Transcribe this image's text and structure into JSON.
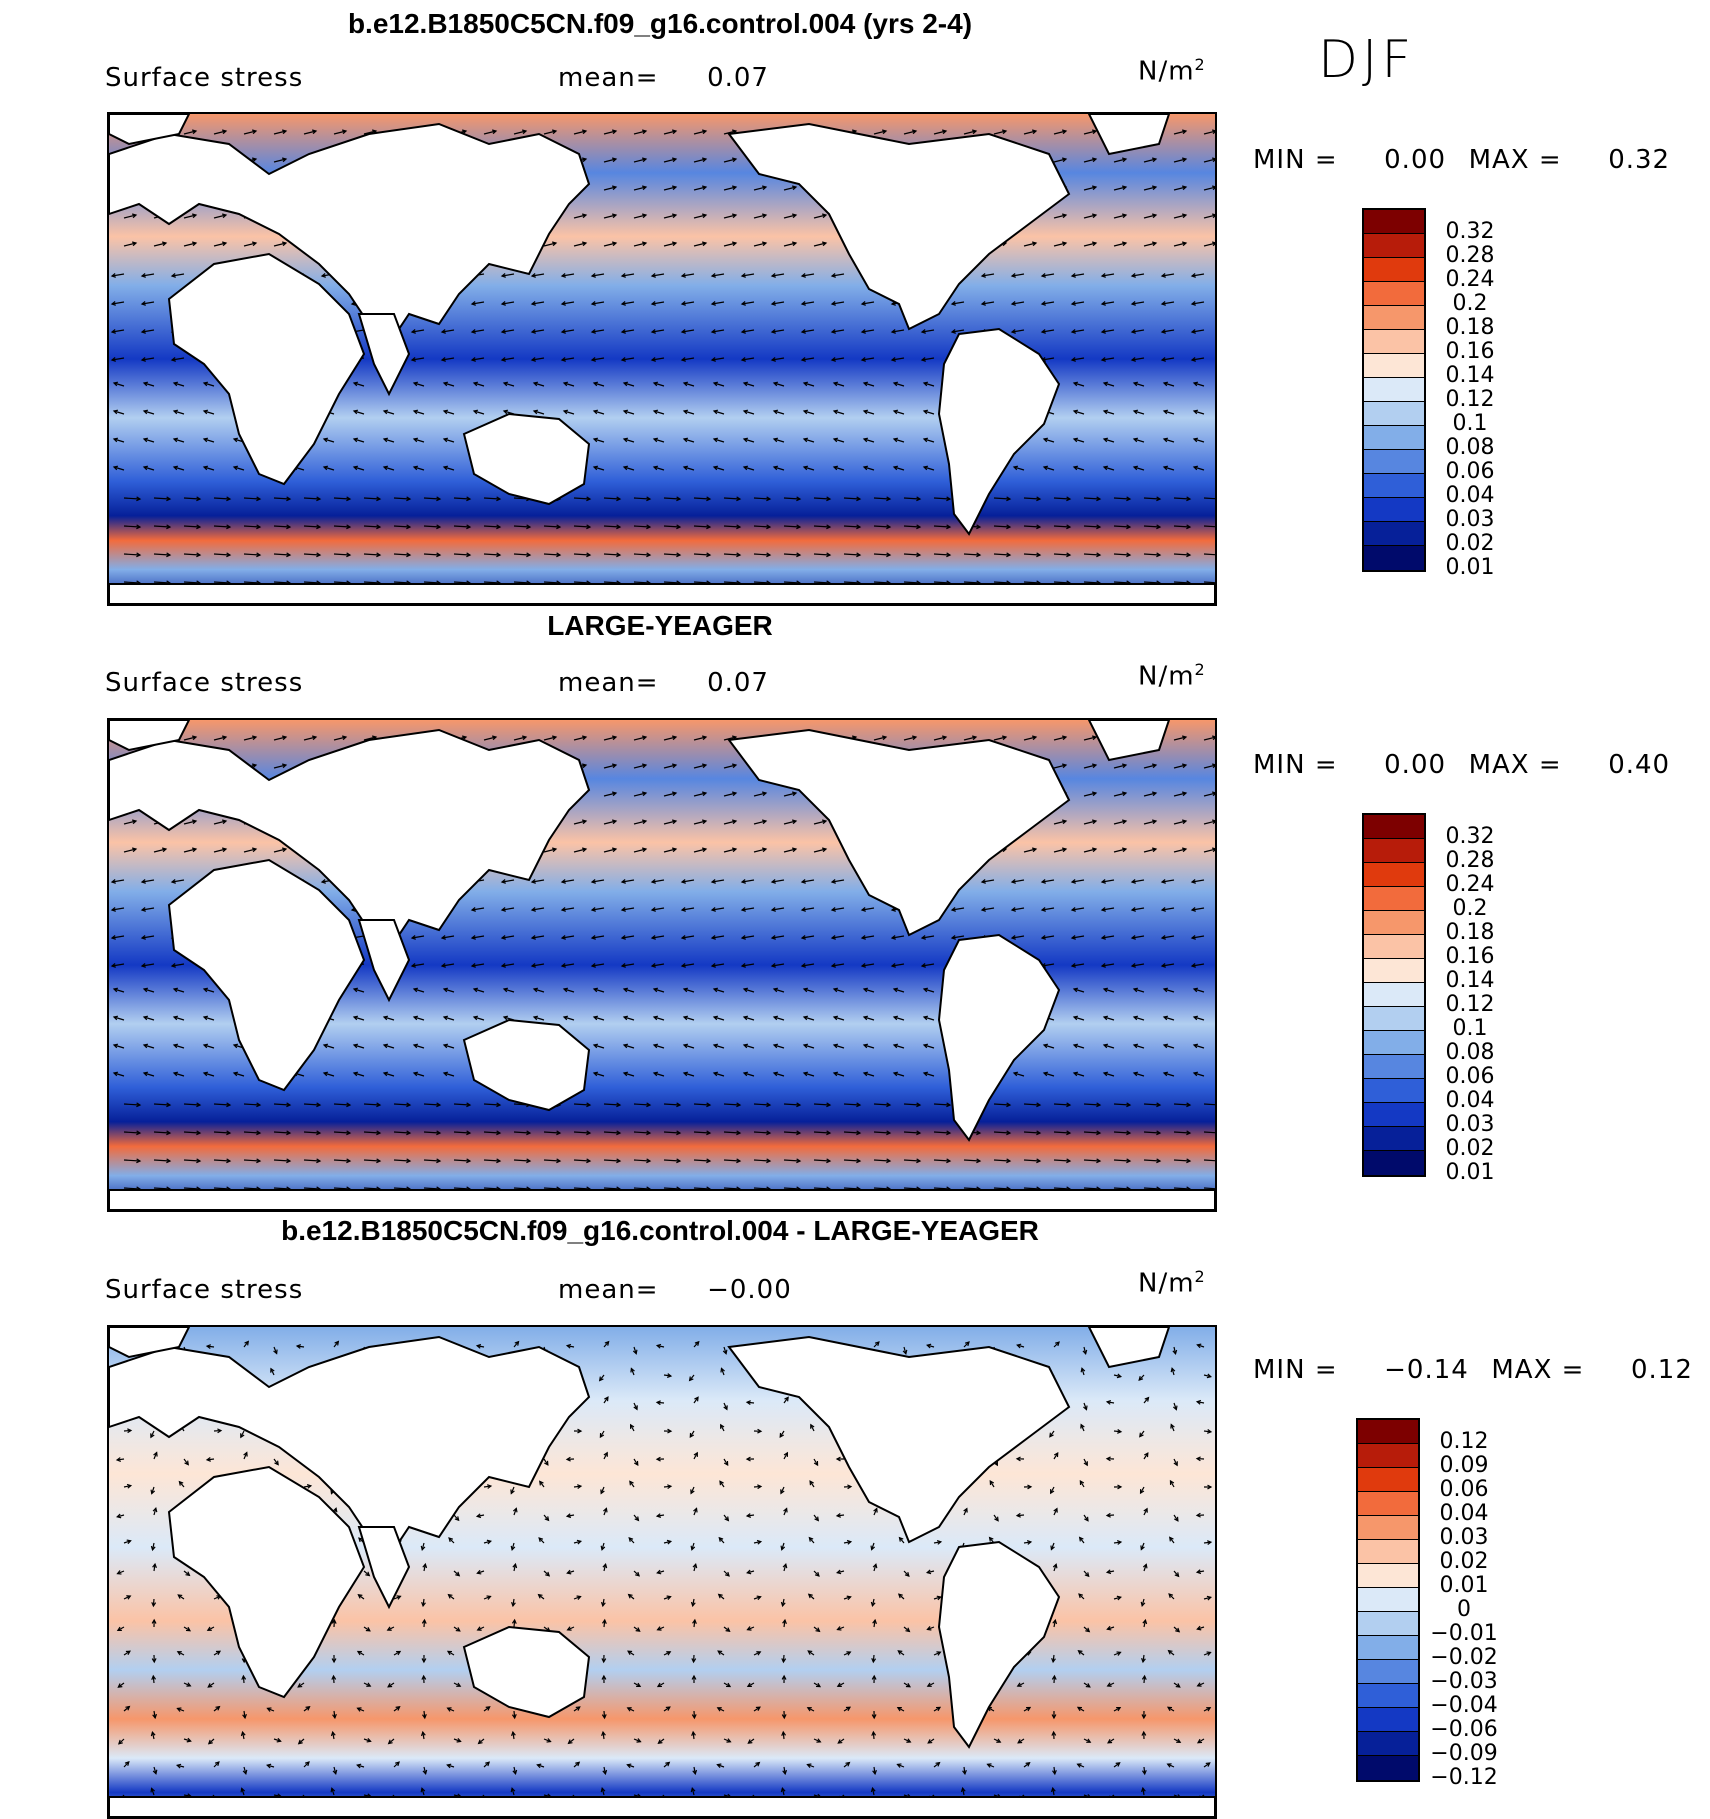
{
  "season": "DJF",
  "panels": [
    {
      "title": "b.e12.B1850C5CN.f09_g16.control.004 (yrs 2-4)",
      "variable": "Surface stress",
      "mean_label": "mean=",
      "mean_value": "0.07",
      "units": "N/m",
      "units_exp": "2",
      "min_label": "MIN =",
      "min_value": "0.00",
      "max_label": "MAX =",
      "max_value": "0.32",
      "colorbar_labels": [
        "0.32",
        "0.28",
        "0.24",
        "0.2",
        "0.18",
        "0.16",
        "0.14",
        "0.12",
        "0.1",
        "0.08",
        "0.06",
        "0.04",
        "0.03",
        "0.02",
        "0.01"
      ]
    },
    {
      "title": "LARGE-YEAGER",
      "variable": "Surface stress",
      "mean_label": "mean=",
      "mean_value": "0.07",
      "units": "N/m",
      "units_exp": "2",
      "min_label": "MIN =",
      "min_value": "0.00",
      "max_label": "MAX =",
      "max_value": "0.40",
      "colorbar_labels": [
        "0.32",
        "0.28",
        "0.24",
        "0.2",
        "0.18",
        "0.16",
        "0.14",
        "0.12",
        "0.1",
        "0.08",
        "0.06",
        "0.04",
        "0.03",
        "0.02",
        "0.01"
      ]
    },
    {
      "title": "b.e12.B1850C5CN.f09_g16.control.004 - LARGE-YEAGER",
      "variable": "Surface stress",
      "mean_label": "mean=",
      "mean_value": "−0.00",
      "units": "N/m",
      "units_exp": "2",
      "min_label": "MIN =",
      "min_value": "−0.14",
      "max_label": "MAX =",
      "max_value": "0.12",
      "colorbar_labels": [
        "0.12",
        "0.09",
        "0.06",
        "0.04",
        "0.03",
        "0.02",
        "0.01",
        "0",
        "−0.01",
        "−0.02",
        "−0.03",
        "−0.04",
        "−0.06",
        "−0.09",
        "−0.12"
      ]
    }
  ],
  "colors": [
    "#7d0000",
    "#b71c0a",
    "#e03a0d",
    "#f26b3c",
    "#f6976b",
    "#fbc3a6",
    "#fde6d6",
    "#dbe9f8",
    "#b2cff0",
    "#82aee8",
    "#5786e0",
    "#2f5fd8",
    "#1439c4",
    "#062099",
    "#000a6b"
  ]
}
